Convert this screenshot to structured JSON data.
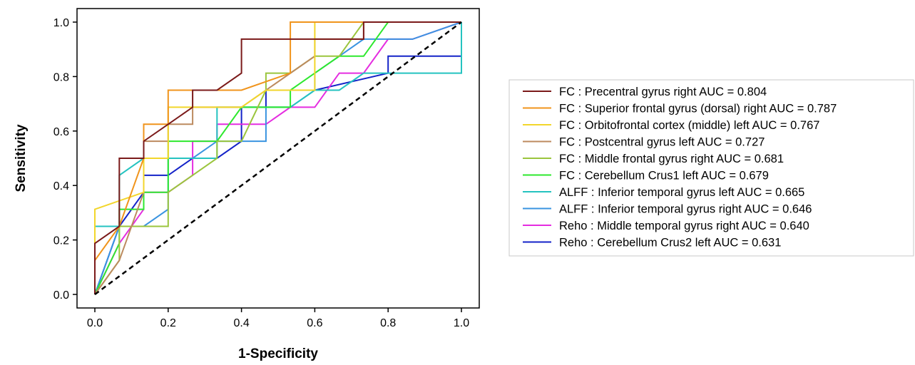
{
  "chart_data": {
    "type": "line",
    "xlabel": "1-Specificity",
    "ylabel": "Sensitivity",
    "xlim": [
      0,
      1
    ],
    "ylim": [
      0,
      1
    ],
    "xticks": [
      "0.0",
      "0.2",
      "0.4",
      "0.6",
      "0.8",
      "1.0"
    ],
    "yticks": [
      "0.0",
      "0.2",
      "0.4",
      "0.6",
      "0.8",
      "1.0"
    ],
    "grid": false,
    "legend_position": "right",
    "diagonal": {
      "style": "dashed",
      "color": "#000000",
      "points": [
        [
          0,
          0
        ],
        [
          1,
          1
        ]
      ]
    },
    "series": [
      {
        "name": "FC : Precentral gyrus right AUC = 0.804",
        "color": "#7b1a1a",
        "points": [
          [
            0,
            0
          ],
          [
            0,
            0.1875
          ],
          [
            0.0667,
            0.25
          ],
          [
            0.0667,
            0.5
          ],
          [
            0.1333,
            0.5
          ],
          [
            0.1333,
            0.5625
          ],
          [
            0.2,
            0.625
          ],
          [
            0.2667,
            0.6875
          ],
          [
            0.2667,
            0.75
          ],
          [
            0.3333,
            0.75
          ],
          [
            0.4,
            0.8125
          ],
          [
            0.4,
            0.9375
          ],
          [
            0.5333,
            0.9375
          ],
          [
            0.6,
            0.9375
          ],
          [
            0.7333,
            0.9375
          ],
          [
            0.7333,
            1
          ],
          [
            1,
            1
          ]
        ]
      },
      {
        "name": "FC : Superior frontal gyrus (dorsal) right AUC = 0.787",
        "color": "#f0941c",
        "points": [
          [
            0,
            0
          ],
          [
            0,
            0.125
          ],
          [
            0.0667,
            0.25
          ],
          [
            0.1333,
            0.5
          ],
          [
            0.1333,
            0.625
          ],
          [
            0.2,
            0.625
          ],
          [
            0.2,
            0.75
          ],
          [
            0.3333,
            0.75
          ],
          [
            0.4,
            0.75
          ],
          [
            0.5333,
            0.8125
          ],
          [
            0.5333,
            1
          ],
          [
            1,
            1
          ]
        ]
      },
      {
        "name": "FC : Orbitofrontal cortex (middle) left AUC = 0.767",
        "color": "#f2d62b",
        "points": [
          [
            0,
            0
          ],
          [
            0,
            0.3125
          ],
          [
            0.1333,
            0.375
          ],
          [
            0.1333,
            0.5
          ],
          [
            0.2,
            0.5
          ],
          [
            0.2,
            0.6875
          ],
          [
            0.3333,
            0.6875
          ],
          [
            0.4,
            0.6875
          ],
          [
            0.4667,
            0.75
          ],
          [
            0.6,
            0.75
          ],
          [
            0.6,
            1
          ],
          [
            1,
            1
          ]
        ]
      },
      {
        "name": "FC : Postcentral gyrus left AUC = 0.727",
        "color": "#bc8a5f",
        "points": [
          [
            0,
            0
          ],
          [
            0.0667,
            0.125
          ],
          [
            0.1333,
            0.375
          ],
          [
            0.1333,
            0.5625
          ],
          [
            0.2,
            0.5625
          ],
          [
            0.2,
            0.625
          ],
          [
            0.2667,
            0.625
          ],
          [
            0.2667,
            0.6875
          ],
          [
            0.4,
            0.6875
          ],
          [
            0.6,
            0.875
          ],
          [
            0.6,
            0.9375
          ],
          [
            0.7333,
            0.9375
          ],
          [
            0.7333,
            1
          ],
          [
            1,
            1
          ]
        ]
      },
      {
        "name": "FC : Middle frontal gyrus right AUC = 0.681",
        "color": "#9bc53d",
        "points": [
          [
            0,
            0
          ],
          [
            0.0667,
            0.125
          ],
          [
            0.0667,
            0.25
          ],
          [
            0.2,
            0.25
          ],
          [
            0.2,
            0.375
          ],
          [
            0.3333,
            0.5
          ],
          [
            0.3333,
            0.5625
          ],
          [
            0.4,
            0.5625
          ],
          [
            0.4667,
            0.75
          ],
          [
            0.4667,
            0.8125
          ],
          [
            0.5333,
            0.8125
          ],
          [
            0.6,
            0.875
          ],
          [
            0.6667,
            0.875
          ],
          [
            0.7333,
            1
          ],
          [
            1,
            1
          ]
        ]
      },
      {
        "name": "FC : Cerebellum Crus1 left AUC = 0.679",
        "color": "#2ee82e",
        "points": [
          [
            0,
            0
          ],
          [
            0.0667,
            0.1875
          ],
          [
            0.0667,
            0.3125
          ],
          [
            0.1333,
            0.3125
          ],
          [
            0.1333,
            0.375
          ],
          [
            0.2,
            0.375
          ],
          [
            0.2,
            0.5625
          ],
          [
            0.2667,
            0.5625
          ],
          [
            0.3333,
            0.5625
          ],
          [
            0.4,
            0.6875
          ],
          [
            0.5333,
            0.6875
          ],
          [
            0.5333,
            0.75
          ],
          [
            0.6,
            0.8125
          ],
          [
            0.6667,
            0.875
          ],
          [
            0.7333,
            0.875
          ],
          [
            0.8,
            1
          ],
          [
            1,
            1
          ]
        ]
      },
      {
        "name": "ALFF : Inferior temporal gyrus left AUC = 0.665",
        "color": "#25c3c0",
        "points": [
          [
            0,
            0
          ],
          [
            0,
            0.25
          ],
          [
            0.0667,
            0.25
          ],
          [
            0.0667,
            0.4375
          ],
          [
            0.1333,
            0.5
          ],
          [
            0.2,
            0.5
          ],
          [
            0.2667,
            0.5
          ],
          [
            0.3333,
            0.5
          ],
          [
            0.3333,
            0.6875
          ],
          [
            0.4,
            0.6875
          ],
          [
            0.5333,
            0.6875
          ],
          [
            0.6,
            0.75
          ],
          [
            0.6667,
            0.75
          ],
          [
            0.7333,
            0.8125
          ],
          [
            1,
            0.8125
          ],
          [
            1,
            1
          ]
        ]
      },
      {
        "name": "ALFF : Inferior temporal gyrus right AUC = 0.646",
        "color": "#3a94e0",
        "points": [
          [
            0,
            0
          ],
          [
            0.0667,
            0.25
          ],
          [
            0.1333,
            0.25
          ],
          [
            0.2,
            0.3125
          ],
          [
            0.2,
            0.5
          ],
          [
            0.2667,
            0.5
          ],
          [
            0.3333,
            0.5625
          ],
          [
            0.4,
            0.5625
          ],
          [
            0.4667,
            0.5625
          ],
          [
            0.4667,
            0.6875
          ],
          [
            0.5333,
            0.6875
          ],
          [
            0.6,
            0.75
          ],
          [
            0.6,
            0.8125
          ],
          [
            0.6667,
            0.875
          ],
          [
            0.7333,
            0.9375
          ],
          [
            0.8667,
            0.9375
          ],
          [
            1,
            1
          ]
        ]
      },
      {
        "name": "Reho : Middle temporal gyrus right AUC = 0.640",
        "color": "#e52de0",
        "points": [
          [
            0,
            0
          ],
          [
            0.0667,
            0.1875
          ],
          [
            0.1333,
            0.3125
          ],
          [
            0.1333,
            0.375
          ],
          [
            0.2,
            0.375
          ],
          [
            0.2667,
            0.4375
          ],
          [
            0.2667,
            0.5625
          ],
          [
            0.3333,
            0.5625
          ],
          [
            0.3333,
            0.625
          ],
          [
            0.4667,
            0.625
          ],
          [
            0.5333,
            0.6875
          ],
          [
            0.6,
            0.6875
          ],
          [
            0.6667,
            0.8125
          ],
          [
            0.7333,
            0.8125
          ],
          [
            0.8,
            0.9375
          ],
          [
            0.8667,
            0.9375
          ],
          [
            1,
            1
          ]
        ]
      },
      {
        "name": "Reho : Cerebellum Crus2 left AUC = 0.631",
        "color": "#1423c8",
        "points": [
          [
            0,
            0
          ],
          [
            0.0667,
            0.25
          ],
          [
            0.1333,
            0.375
          ],
          [
            0.1333,
            0.4375
          ],
          [
            0.2,
            0.4375
          ],
          [
            0.2667,
            0.5
          ],
          [
            0.3333,
            0.5
          ],
          [
            0.4,
            0.5625
          ],
          [
            0.4,
            0.6875
          ],
          [
            0.4667,
            0.6875
          ],
          [
            0.4667,
            0.75
          ],
          [
            0.6,
            0.75
          ],
          [
            0.8,
            0.8125
          ],
          [
            0.8,
            0.875
          ],
          [
            1,
            0.875
          ],
          [
            1,
            1
          ]
        ]
      }
    ]
  }
}
